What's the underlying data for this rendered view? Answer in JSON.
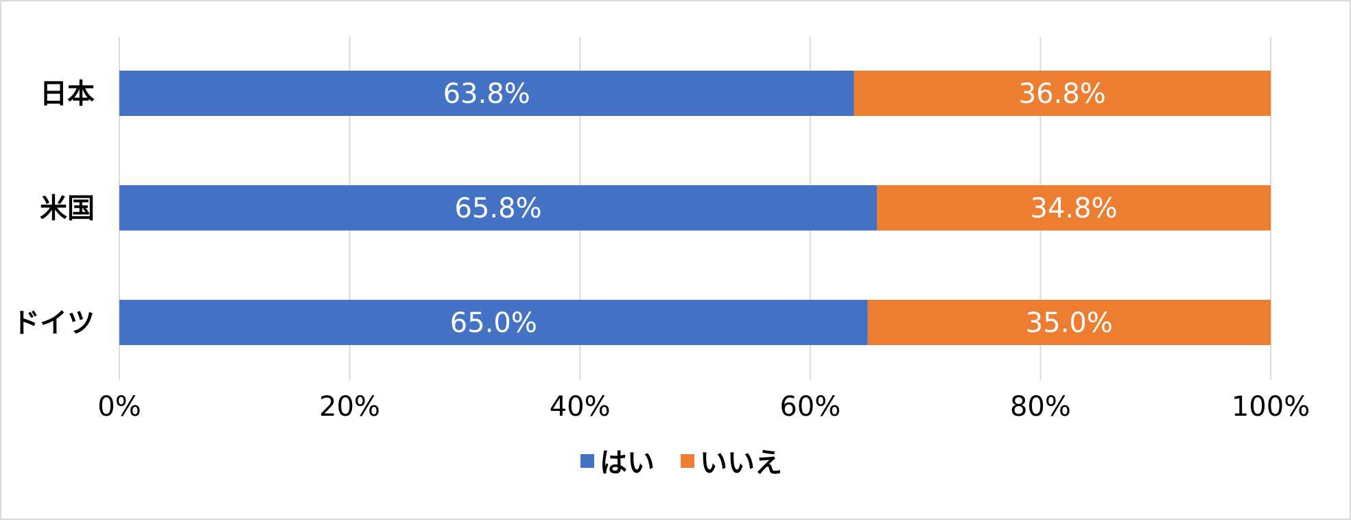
{
  "chart_data": {
    "type": "bar",
    "orientation": "horizontal",
    "stacked": true,
    "categories": [
      "日本",
      "米国",
      "ドイツ"
    ],
    "series": [
      {
        "name": "はい",
        "values": [
          63.8,
          65.8,
          65.0
        ],
        "color": "#4472C4"
      },
      {
        "name": "いいえ",
        "values": [
          36.8,
          34.8,
          35.0
        ],
        "color": "#ED7D31"
      }
    ],
    "data_labels": [
      [
        "63.8%",
        "65.8%",
        "65.0%"
      ],
      [
        "36.8%",
        "34.8%",
        "35.0%"
      ]
    ],
    "xlim": [
      0,
      100
    ],
    "x_ticks": [
      0,
      20,
      40,
      60,
      80,
      100
    ],
    "x_tick_labels": [
      "0%",
      "20%",
      "40%",
      "60%",
      "80%",
      "100%"
    ],
    "grid": true,
    "legend": "bottom",
    "title": "",
    "xlabel": "",
    "ylabel": ""
  }
}
